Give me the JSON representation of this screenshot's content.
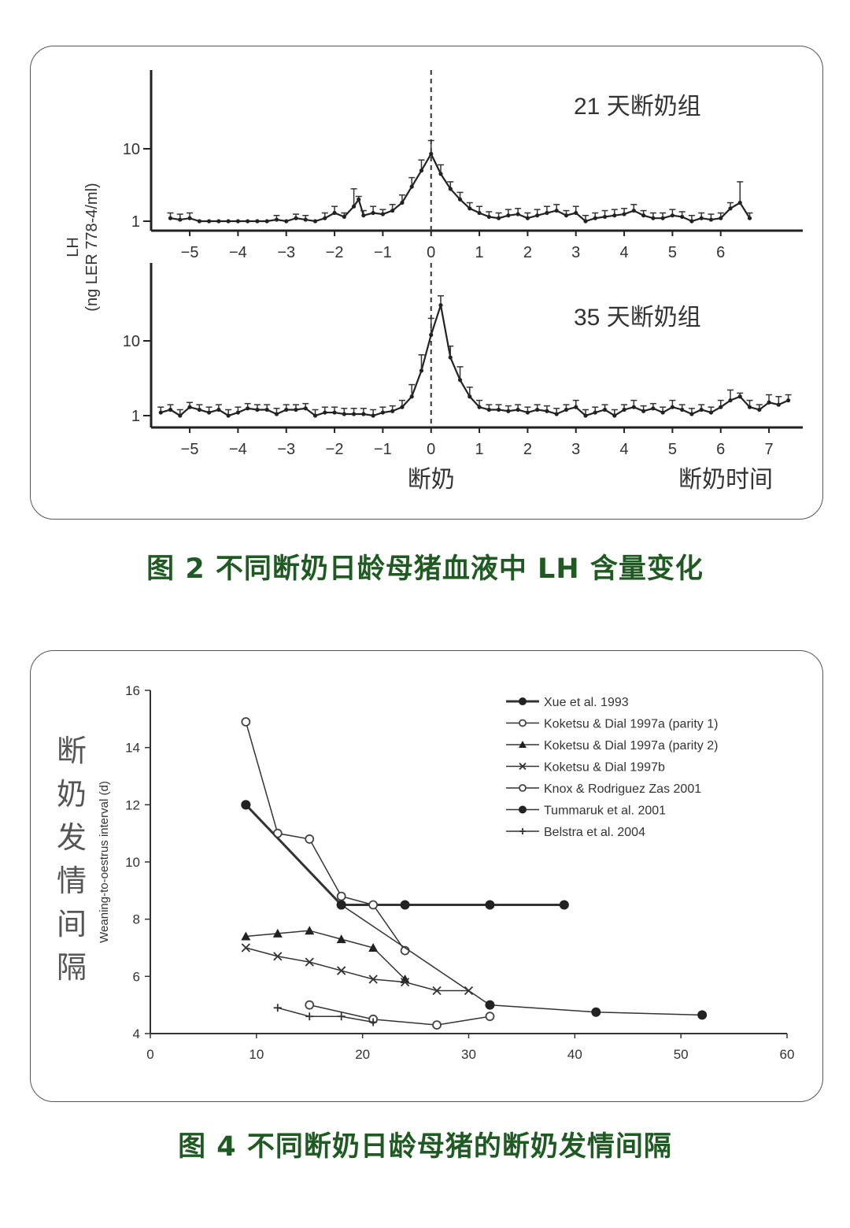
{
  "figure2": {
    "caption": "图 2 不同断奶日龄母猪血液中 LH 含量变化",
    "ylabel_line1": "LH",
    "ylabel_line2": "(ng LER 778-4/ml)",
    "weaning_label": "断奶",
    "time_label": "断奶时间",
    "chart_data": [
      {
        "type": "line",
        "title": "21 天断奶组",
        "xlabel": "断奶时间",
        "ylabel": "LH (ng LER 778-4/ml)",
        "yscale": "log",
        "ylim": [
          0.8,
          100
        ],
        "xlim": [
          -5.8,
          7.7
        ],
        "x_ticks": [
          "−5",
          "−4",
          "−3",
          "−2",
          "−1",
          "0",
          "1",
          "2",
          "3",
          "4",
          "5",
          "6"
        ],
        "y_ticks": [
          "1",
          "10"
        ],
        "series": [
          {
            "name": "21 天断奶组",
            "x": [
              -5.4,
              -5.2,
              -5,
              -4.8,
              -4.6,
              -4.4,
              -4.2,
              -4,
              -3.8,
              -3.6,
              -3.4,
              -3.2,
              -3,
              -2.8,
              -2.6,
              -2.4,
              -2.2,
              -2,
              -1.8,
              -1.6,
              -1.5,
              -1.4,
              -1.2,
              -1,
              -0.8,
              -0.6,
              -0.4,
              -0.2,
              0,
              0.2,
              0.4,
              0.6,
              0.8,
              1,
              1.2,
              1.4,
              1.6,
              1.8,
              2,
              2.2,
              2.4,
              2.6,
              2.8,
              3,
              3.2,
              3.4,
              3.6,
              3.8,
              4,
              4.2,
              4.4,
              4.6,
              4.8,
              5,
              5.2,
              5.4,
              5.6,
              5.8,
              6,
              6.2,
              6.4,
              6.6
            ],
            "values": [
              1.1,
              1.05,
              1.1,
              1.0,
              1.0,
              1.0,
              1.0,
              1.0,
              1.0,
              1.0,
              1.0,
              1.05,
              1.0,
              1.1,
              1.05,
              1.0,
              1.1,
              1.3,
              1.15,
              1.6,
              2.0,
              1.2,
              1.3,
              1.25,
              1.4,
              1.8,
              3.0,
              5.0,
              8.5,
              4.5,
              2.8,
              2.0,
              1.5,
              1.3,
              1.15,
              1.1,
              1.2,
              1.25,
              1.1,
              1.2,
              1.3,
              1.4,
              1.2,
              1.3,
              1.0,
              1.1,
              1.15,
              1.2,
              1.25,
              1.4,
              1.2,
              1.1,
              1.1,
              1.2,
              1.15,
              1.0,
              1.1,
              1.05,
              1.1,
              1.5,
              1.8,
              1.1
            ],
            "error_top": [
              1.3,
              1.25,
              1.3,
              1.0,
              1.0,
              1.0,
              1.0,
              1.0,
              1.0,
              1.0,
              1.0,
              1.2,
              1.0,
              1.25,
              1.2,
              1.0,
              1.3,
              1.6,
              1.3,
              2.8,
              2.2,
              1.4,
              1.6,
              1.45,
              1.7,
              2.3,
              4.0,
              7.0,
              13.0,
              6.0,
              3.5,
              2.5,
              1.8,
              1.6,
              1.35,
              1.3,
              1.45,
              1.5,
              1.3,
              1.45,
              1.6,
              1.7,
              1.4,
              1.6,
              1.2,
              1.3,
              1.4,
              1.45,
              1.5,
              1.7,
              1.4,
              1.3,
              1.3,
              1.45,
              1.35,
              1.2,
              1.3,
              1.25,
              1.3,
              1.8,
              3.5,
              1.3
            ]
          }
        ]
      },
      {
        "type": "line",
        "title": "35 天断奶组",
        "xlabel": "断奶时间",
        "ylabel": "LH (ng LER 778-4/ml)",
        "yscale": "log",
        "ylim": [
          0.8,
          100
        ],
        "xlim": [
          -5.8,
          7.7
        ],
        "x_ticks": [
          "−5",
          "−4",
          "−3",
          "−2",
          "−1",
          "0",
          "1",
          "2",
          "3",
          "4",
          "5",
          "6",
          "7"
        ],
        "y_ticks": [
          "1",
          "10"
        ],
        "series": [
          {
            "name": "35 天断奶组",
            "x": [
              -5.6,
              -5.4,
              -5.2,
              -5,
              -4.8,
              -4.6,
              -4.4,
              -4.2,
              -4,
              -3.8,
              -3.6,
              -3.4,
              -3.2,
              -3,
              -2.8,
              -2.6,
              -2.4,
              -2.2,
              -2,
              -1.8,
              -1.6,
              -1.4,
              -1.2,
              -1,
              -0.8,
              -0.6,
              -0.4,
              -0.2,
              0,
              0.2,
              0.4,
              0.6,
              0.8,
              1,
              1.2,
              1.4,
              1.6,
              1.8,
              2,
              2.2,
              2.4,
              2.6,
              2.8,
              3,
              3.2,
              3.4,
              3.6,
              3.8,
              4,
              4.2,
              4.4,
              4.6,
              4.8,
              5,
              5.2,
              5.4,
              5.6,
              5.8,
              6,
              6.2,
              6.4,
              6.6,
              6.8,
              7,
              7.2,
              7.4
            ],
            "values": [
              1.1,
              1.2,
              1.0,
              1.3,
              1.2,
              1.1,
              1.2,
              1.0,
              1.1,
              1.25,
              1.2,
              1.2,
              1.05,
              1.2,
              1.2,
              1.25,
              1.0,
              1.1,
              1.1,
              1.05,
              1.05,
              1.05,
              1.0,
              1.1,
              1.15,
              1.3,
              1.8,
              4.0,
              12.0,
              30.0,
              6.0,
              3.0,
              1.8,
              1.3,
              1.2,
              1.2,
              1.15,
              1.2,
              1.1,
              1.2,
              1.15,
              1.05,
              1.2,
              1.3,
              1.0,
              1.1,
              1.2,
              1.0,
              1.2,
              1.3,
              1.15,
              1.25,
              1.1,
              1.3,
              1.2,
              1.05,
              1.2,
              1.1,
              1.3,
              1.6,
              1.8,
              1.3,
              1.2,
              1.5,
              1.4,
              1.6
            ],
            "error_top": [
              1.3,
              1.4,
              1.2,
              1.5,
              1.4,
              1.3,
              1.4,
              1.2,
              1.3,
              1.45,
              1.4,
              1.4,
              1.25,
              1.4,
              1.4,
              1.45,
              1.2,
              1.3,
              1.3,
              1.25,
              1.25,
              1.25,
              1.2,
              1.3,
              1.35,
              1.6,
              2.6,
              6.5,
              20.0,
              40.0,
              8.5,
              4.5,
              2.4,
              1.6,
              1.4,
              1.4,
              1.35,
              1.4,
              1.3,
              1.4,
              1.35,
              1.25,
              1.4,
              1.6,
              1.2,
              1.3,
              1.4,
              1.2,
              1.4,
              1.6,
              1.35,
              1.45,
              1.3,
              1.6,
              1.4,
              1.25,
              1.4,
              1.3,
              1.6,
              2.2,
              2.0,
              1.6,
              1.4,
              1.9,
              1.8,
              1.9
            ]
          }
        ]
      }
    ]
  },
  "figure4": {
    "caption": "图 4 不同断奶日龄母猪的断奶发情间隔",
    "side_label": [
      "断",
      "奶",
      "发",
      "情",
      "间",
      "隔"
    ],
    "chart_data": {
      "type": "line",
      "title": "",
      "xlabel": "",
      "ylabel": "Weaning-to-oestrus interval (d)",
      "xlim": [
        0,
        60
      ],
      "ylim": [
        4,
        16
      ],
      "x_ticks": [
        "0",
        "10",
        "20",
        "30",
        "40",
        "50",
        "60"
      ],
      "y_ticks": [
        "4",
        "6",
        "8",
        "10",
        "12",
        "14",
        "16"
      ],
      "legend_position": "top-right",
      "series": [
        {
          "name": "Xue et al. 1993",
          "marker": "filled-circle",
          "linewidth": 3,
          "x": [
            9,
            18,
            24,
            32,
            39
          ],
          "values": [
            12,
            8.5,
            8.5,
            8.5,
            8.5
          ]
        },
        {
          "name": "Koketsu & Dial 1997a (parity 1)",
          "marker": "open-circle",
          "linewidth": 1.5,
          "x": [
            9,
            12,
            15,
            18,
            21,
            24
          ],
          "values": [
            14.9,
            11.0,
            10.8,
            8.8,
            8.5,
            6.9
          ]
        },
        {
          "name": "Koketsu & Dial 1997a (parity 2)",
          "marker": "triangle",
          "linewidth": 1.5,
          "x": [
            9,
            12,
            15,
            18,
            21,
            24
          ],
          "values": [
            7.4,
            7.5,
            7.6,
            7.3,
            7.0,
            5.9
          ]
        },
        {
          "name": "Koketsu & Dial 1997b",
          "marker": "x",
          "linewidth": 1.5,
          "x": [
            9,
            12,
            15,
            18,
            21,
            24,
            27,
            30
          ],
          "values": [
            7.0,
            6.7,
            6.5,
            6.2,
            5.9,
            5.8,
            5.5,
            5.5
          ]
        },
        {
          "name": "Knox & Rodriguez Zas 2001",
          "marker": "open-circle",
          "linewidth": 1.5,
          "x": [
            15,
            21,
            27,
            32
          ],
          "values": [
            5.0,
            4.5,
            4.3,
            4.6
          ]
        },
        {
          "name": "Tummaruk et al. 2001",
          "marker": "filled-circle",
          "linewidth": 1.5,
          "x": [
            9,
            18,
            32,
            42,
            52
          ],
          "values": [
            12,
            8.5,
            5.0,
            4.75,
            4.65
          ]
        },
        {
          "name": "Belstra et al. 2004",
          "marker": "plus",
          "linewidth": 1.5,
          "x": [
            12,
            15,
            18,
            21
          ],
          "values": [
            4.9,
            4.6,
            4.6,
            4.4
          ]
        }
      ]
    }
  }
}
